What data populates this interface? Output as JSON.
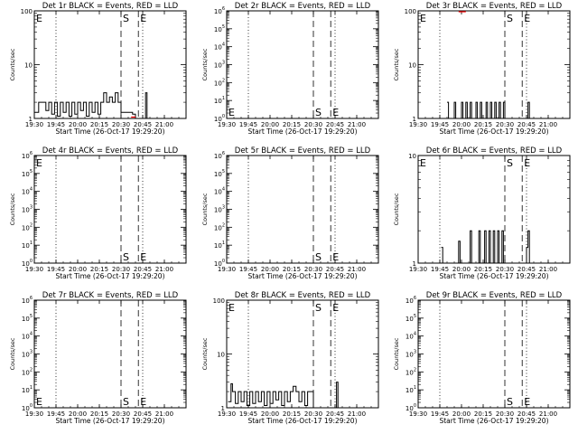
{
  "figure": {
    "background": "#ffffff",
    "ink": "#000000",
    "lld_color": "#ff0000"
  },
  "chart_data": [
    {
      "type": "line",
      "title": "Det 1r BLACK = Events, RED = LLD",
      "xlabel": "Start Time (26-Oct-17 19:29:20)",
      "ylabel": "Counts/sec",
      "scale": "log",
      "ylim": [
        1,
        100
      ],
      "yticks": [
        {
          "v": 1,
          "m": "1",
          "e": ""
        },
        {
          "v": 10,
          "m": "10",
          "e": ""
        },
        {
          "v": 100,
          "m": "100",
          "e": ""
        }
      ],
      "xlim": [
        "19:30",
        "21:15"
      ],
      "xticks": [
        "19:30",
        "19:45",
        "20:00",
        "20:15",
        "20:30",
        "20:45",
        "21:00"
      ],
      "dotted_lines": [
        "19:45",
        "20:45"
      ],
      "dashed_lines": [
        "20:30",
        "20:42"
      ],
      "markers": [
        {
          "text": "S",
          "at": "20:30",
          "pos": "top"
        },
        {
          "text": "E",
          "at": "20:42",
          "pos": "top"
        },
        {
          "text": "E",
          "at": "19:30",
          "pos": "top"
        }
      ],
      "events": [
        [
          "19:30",
          1.3
        ],
        [
          "19:33",
          2
        ],
        [
          "19:36",
          2
        ],
        [
          "19:38",
          1.4
        ],
        [
          "19:40",
          2
        ],
        [
          "19:42",
          1.2
        ],
        [
          "19:44",
          2
        ],
        [
          "19:46",
          1.1
        ],
        [
          "19:48",
          2
        ],
        [
          "19:50",
          1.3
        ],
        [
          "19:52",
          2
        ],
        [
          "19:54",
          1.1
        ],
        [
          "19:56",
          2
        ],
        [
          "19:58",
          1.2
        ],
        [
          "20:00",
          2
        ],
        [
          "20:02",
          1.4
        ],
        [
          "20:04",
          2
        ],
        [
          "20:06",
          1.1
        ],
        [
          "20:08",
          2
        ],
        [
          "20:10",
          1.3
        ],
        [
          "20:12",
          2
        ],
        [
          "20:14",
          1.2
        ],
        [
          "20:16",
          2
        ],
        [
          "20:18",
          3
        ],
        [
          "20:20",
          2
        ],
        [
          "20:22",
          2.5
        ],
        [
          "20:24",
          2
        ],
        [
          "20:26",
          3
        ],
        [
          "20:28",
          2
        ],
        [
          "20:30",
          1.3
        ],
        [
          "20:38",
          1.2
        ],
        [
          "20:40",
          1
        ],
        [
          "20:47",
          3
        ],
        [
          "20:48",
          1
        ]
      ],
      "lld": [
        [
          "20:37",
          1.02
        ],
        [
          "20:40",
          1.02
        ]
      ]
    },
    {
      "type": "line",
      "title": "Det 2r BLACK = Events, RED = LLD",
      "xlabel": "Start Time (26-Oct-17 19:29:20)",
      "ylabel": "Counts/sec",
      "scale": "log",
      "ylim": [
        1,
        1000000
      ],
      "yticks": [
        {
          "v": 1,
          "m": "10",
          "e": "0"
        },
        {
          "v": 10,
          "m": "10",
          "e": "1"
        },
        {
          "v": 100,
          "m": "10",
          "e": "2"
        },
        {
          "v": 1000,
          "m": "10",
          "e": "3"
        },
        {
          "v": 10000,
          "m": "10",
          "e": "4"
        },
        {
          "v": 100000,
          "m": "10",
          "e": "5"
        },
        {
          "v": 1000000,
          "m": "10",
          "e": "6"
        }
      ],
      "xlim": [
        "19:30",
        "21:15"
      ],
      "xticks": [
        "19:30",
        "19:45",
        "20:00",
        "20:15",
        "20:30",
        "20:45",
        "21:00"
      ],
      "dotted_lines": [
        "19:45",
        "20:45"
      ],
      "dashed_lines": [
        "20:30",
        "20:42"
      ],
      "markers": [
        {
          "text": "E",
          "at": "19:30",
          "pos": "bottom"
        },
        {
          "text": "S",
          "at": "20:30",
          "pos": "bottom"
        },
        {
          "text": "E",
          "at": "20:42",
          "pos": "bottom"
        }
      ],
      "events": [],
      "lld": []
    },
    {
      "type": "line",
      "title": "Det 3r BLACK = Events, RED = LLD",
      "xlabel": "Start Time (26-Oct-17 19:29:20)",
      "ylabel": "Counts/sec",
      "scale": "log",
      "ylim": [
        1,
        100
      ],
      "yticks": [
        {
          "v": 1,
          "m": "1",
          "e": ""
        },
        {
          "v": 10,
          "m": "10",
          "e": ""
        },
        {
          "v": 100,
          "m": "100",
          "e": ""
        }
      ],
      "xlim": [
        "19:30",
        "21:15"
      ],
      "xticks": [
        "19:30",
        "19:45",
        "20:00",
        "20:15",
        "20:30",
        "20:45",
        "21:00"
      ],
      "dotted_lines": [
        "19:45",
        "20:45"
      ],
      "dashed_lines": [
        "20:30",
        "20:42"
      ],
      "markers": [
        {
          "text": "E",
          "at": "19:30",
          "pos": "top"
        },
        {
          "text": "S",
          "at": "20:30",
          "pos": "top"
        },
        {
          "text": "E",
          "at": "20:42",
          "pos": "top"
        }
      ],
      "events": [
        [
          "19:50",
          2
        ],
        [
          "19:51",
          1
        ],
        [
          "19:55",
          2
        ],
        [
          "19:56",
          1
        ],
        [
          "20:00",
          2
        ],
        [
          "20:01",
          1
        ],
        [
          "20:03",
          2
        ],
        [
          "20:04",
          1
        ],
        [
          "20:06",
          2
        ],
        [
          "20:07",
          1
        ],
        [
          "20:10",
          2
        ],
        [
          "20:11",
          1
        ],
        [
          "20:13",
          2
        ],
        [
          "20:14",
          1
        ],
        [
          "20:17",
          2
        ],
        [
          "20:18",
          1
        ],
        [
          "20:20",
          2
        ],
        [
          "20:21",
          1
        ],
        [
          "20:23",
          2
        ],
        [
          "20:24",
          1
        ],
        [
          "20:26",
          2
        ],
        [
          "20:27",
          1
        ],
        [
          "20:29",
          2
        ],
        [
          "20:30",
          1
        ],
        [
          "20:46",
          2
        ],
        [
          "20:47",
          1
        ]
      ],
      "lld": [
        [
          "19:58",
          100
        ],
        [
          "20:03",
          100
        ]
      ]
    },
    {
      "type": "line",
      "title": "Det 4r BLACK = Events, RED = LLD",
      "xlabel": "Start Time (26-Oct-17 19:29:20)",
      "ylabel": "Counts/sec",
      "scale": "log",
      "ylim": [
        1,
        1000000
      ],
      "yticks": [
        {
          "v": 1,
          "m": "10",
          "e": "0"
        },
        {
          "v": 10,
          "m": "10",
          "e": "1"
        },
        {
          "v": 100,
          "m": "10",
          "e": "2"
        },
        {
          "v": 1000,
          "m": "10",
          "e": "3"
        },
        {
          "v": 10000,
          "m": "10",
          "e": "4"
        },
        {
          "v": 100000,
          "m": "10",
          "e": "5"
        },
        {
          "v": 1000000,
          "m": "10",
          "e": "6"
        }
      ],
      "xlim": [
        "19:30",
        "21:15"
      ],
      "xticks": [
        "19:30",
        "19:45",
        "20:00",
        "20:15",
        "20:30",
        "20:45",
        "21:00"
      ],
      "dotted_lines": [
        "19:45",
        "20:45"
      ],
      "dashed_lines": [
        "20:30",
        "20:42"
      ],
      "markers": [
        {
          "text": "E",
          "at": "19:30",
          "pos": "top"
        },
        {
          "text": "S",
          "at": "20:30",
          "pos": "bottom"
        },
        {
          "text": "E",
          "at": "20:42",
          "pos": "bottom"
        }
      ],
      "events": [],
      "lld": []
    },
    {
      "type": "line",
      "title": "Det 5r BLACK = Events, RED = LLD",
      "xlabel": "Start Time (26-Oct-17 19:29:20)",
      "ylabel": "Counts/sec",
      "scale": "log",
      "ylim": [
        1,
        1000000
      ],
      "yticks": [
        {
          "v": 1,
          "m": "10",
          "e": "0"
        },
        {
          "v": 10,
          "m": "10",
          "e": "1"
        },
        {
          "v": 100,
          "m": "10",
          "e": "2"
        },
        {
          "v": 1000,
          "m": "10",
          "e": "3"
        },
        {
          "v": 10000,
          "m": "10",
          "e": "4"
        },
        {
          "v": 100000,
          "m": "10",
          "e": "5"
        },
        {
          "v": 1000000,
          "m": "10",
          "e": "6"
        }
      ],
      "xlim": [
        "19:30",
        "21:15"
      ],
      "xticks": [
        "19:30",
        "19:45",
        "20:00",
        "20:15",
        "20:30",
        "20:45",
        "21:00"
      ],
      "dotted_lines": [
        "19:45",
        "20:45"
      ],
      "dashed_lines": [
        "20:30",
        "20:42"
      ],
      "markers": [
        {
          "text": "S",
          "at": "20:30",
          "pos": "bottom"
        },
        {
          "text": "E",
          "at": "20:42",
          "pos": "bottom"
        }
      ],
      "events": [],
      "lld": []
    },
    {
      "type": "line",
      "title": "Det 6r BLACK = Events, RED = LLD",
      "xlabel": "Start Time (26-Oct-17 19:29:20)",
      "ylabel": "Counts/sec",
      "scale": "log",
      "ylim": [
        1,
        10
      ],
      "yticks": [
        {
          "v": 1,
          "m": "1",
          "e": ""
        },
        {
          "v": 10,
          "m": "10",
          "e": ""
        }
      ],
      "xlim": [
        "19:30",
        "21:15"
      ],
      "xticks": [
        "19:30",
        "19:45",
        "20:00",
        "20:15",
        "20:30",
        "20:45",
        "21:00"
      ],
      "dotted_lines": [
        "19:45",
        "20:45"
      ],
      "dashed_lines": [
        "20:30",
        "20:42"
      ],
      "markers": [
        {
          "text": "E",
          "at": "19:30",
          "pos": "top"
        },
        {
          "text": "S",
          "at": "20:30",
          "pos": "top"
        },
        {
          "text": "E",
          "at": "20:42",
          "pos": "top"
        }
      ],
      "events": [
        [
          "19:46",
          1.4
        ],
        [
          "19:47",
          1
        ],
        [
          "19:58",
          1.6
        ],
        [
          "19:59",
          1
        ],
        [
          "20:06",
          2
        ],
        [
          "20:07",
          1
        ],
        [
          "20:12",
          2
        ],
        [
          "20:13",
          1
        ],
        [
          "20:16",
          2
        ],
        [
          "20:17",
          1
        ],
        [
          "20:19",
          2
        ],
        [
          "20:20",
          1
        ],
        [
          "20:22",
          2
        ],
        [
          "20:23",
          1
        ],
        [
          "20:25",
          2
        ],
        [
          "20:26",
          1
        ],
        [
          "20:28",
          2
        ],
        [
          "20:29",
          1
        ],
        [
          "20:45",
          1.4
        ],
        [
          "20:46",
          2
        ],
        [
          "20:47",
          1
        ]
      ],
      "lld": []
    },
    {
      "type": "line",
      "title": "Det 7r BLACK = Events, RED = LLD",
      "xlabel": "Start Time (26-Oct-17 19:29:20)",
      "ylabel": "Counts/sec",
      "scale": "log",
      "ylim": [
        1,
        1000000
      ],
      "yticks": [
        {
          "v": 1,
          "m": "10",
          "e": "0"
        },
        {
          "v": 10,
          "m": "10",
          "e": "1"
        },
        {
          "v": 100,
          "m": "10",
          "e": "2"
        },
        {
          "v": 1000,
          "m": "10",
          "e": "3"
        },
        {
          "v": 10000,
          "m": "10",
          "e": "4"
        },
        {
          "v": 100000,
          "m": "10",
          "e": "5"
        },
        {
          "v": 1000000,
          "m": "10",
          "e": "6"
        }
      ],
      "xlim": [
        "19:30",
        "21:15"
      ],
      "xticks": [
        "19:30",
        "19:45",
        "20:00",
        "20:15",
        "20:30",
        "20:45",
        "21:00"
      ],
      "dotted_lines": [
        "19:45",
        "20:45"
      ],
      "dashed_lines": [
        "20:30",
        "20:42"
      ],
      "markers": [
        {
          "text": "E",
          "at": "19:30",
          "pos": "bottom"
        },
        {
          "text": "S",
          "at": "20:30",
          "pos": "bottom"
        },
        {
          "text": "E",
          "at": "20:42",
          "pos": "bottom"
        }
      ],
      "events": [],
      "lld": []
    },
    {
      "type": "line",
      "title": "Det 8r BLACK = Events, RED = LLD",
      "xlabel": "Start Time (26-Oct-17 19:29:20)",
      "ylabel": "Counts/sec",
      "scale": "log",
      "ylim": [
        1,
        100
      ],
      "yticks": [
        {
          "v": 1,
          "m": "1",
          "e": ""
        },
        {
          "v": 10,
          "m": "10",
          "e": ""
        },
        {
          "v": 100,
          "m": "100",
          "e": ""
        }
      ],
      "xlim": [
        "19:30",
        "21:15"
      ],
      "xticks": [
        "19:30",
        "19:45",
        "20:00",
        "20:15",
        "20:30",
        "20:45",
        "21:00"
      ],
      "dotted_lines": [
        "19:45",
        "20:45"
      ],
      "dashed_lines": [
        "20:30",
        "20:42"
      ],
      "markers": [
        {
          "text": "E",
          "at": "19:30",
          "pos": "top"
        },
        {
          "text": "S",
          "at": "20:30",
          "pos": "top"
        },
        {
          "text": "E",
          "at": "20:42",
          "pos": "top"
        }
      ],
      "events": [
        [
          "19:31",
          1.3
        ],
        [
          "19:33",
          2.8
        ],
        [
          "19:34",
          2
        ],
        [
          "19:36",
          1.2
        ],
        [
          "19:38",
          2
        ],
        [
          "19:40",
          1.3
        ],
        [
          "19:42",
          2
        ],
        [
          "19:44",
          1.1
        ],
        [
          "19:46",
          2
        ],
        [
          "19:48",
          1.2
        ],
        [
          "19:50",
          2
        ],
        [
          "19:52",
          1.3
        ],
        [
          "19:54",
          2
        ],
        [
          "19:56",
          1.1
        ],
        [
          "19:58",
          2
        ],
        [
          "20:00",
          1.2
        ],
        [
          "20:02",
          2
        ],
        [
          "20:04",
          1.4
        ],
        [
          "20:06",
          2
        ],
        [
          "20:08",
          1.1
        ],
        [
          "20:10",
          2
        ],
        [
          "20:12",
          1.3
        ],
        [
          "20:14",
          2
        ],
        [
          "20:16",
          2.5
        ],
        [
          "20:18",
          2
        ],
        [
          "20:20",
          1.3
        ],
        [
          "20:22",
          2
        ],
        [
          "20:24",
          1.1
        ],
        [
          "20:26",
          2
        ],
        [
          "20:28",
          2
        ],
        [
          "20:30",
          1
        ],
        [
          "20:45",
          1
        ],
        [
          "20:46",
          3
        ],
        [
          "20:47",
          1
        ]
      ],
      "lld": []
    },
    {
      "type": "line",
      "title": "Det 9r BLACK = Events, RED = LLD",
      "xlabel": "Start Time (26-Oct-17 19:29:20)",
      "ylabel": "Counts/sec",
      "scale": "log",
      "ylim": [
        1,
        1000000
      ],
      "yticks": [
        {
          "v": 1,
          "m": "10",
          "e": "0"
        },
        {
          "v": 10,
          "m": "10",
          "e": "1"
        },
        {
          "v": 100,
          "m": "10",
          "e": "2"
        },
        {
          "v": 1000,
          "m": "10",
          "e": "3"
        },
        {
          "v": 10000,
          "m": "10",
          "e": "4"
        },
        {
          "v": 100000,
          "m": "10",
          "e": "5"
        },
        {
          "v": 1000000,
          "m": "10",
          "e": "6"
        }
      ],
      "xlim": [
        "19:30",
        "21:15"
      ],
      "xticks": [
        "19:30",
        "19:45",
        "20:00",
        "20:15",
        "20:30",
        "20:45",
        "21:00"
      ],
      "dotted_lines": [
        "19:45",
        "20:45"
      ],
      "dashed_lines": [
        "20:30",
        "20:42"
      ],
      "markers": [
        {
          "text": "S",
          "at": "20:30",
          "pos": "bottom"
        },
        {
          "text": "E",
          "at": "20:42",
          "pos": "bottom"
        }
      ],
      "events": [],
      "lld": []
    }
  ]
}
